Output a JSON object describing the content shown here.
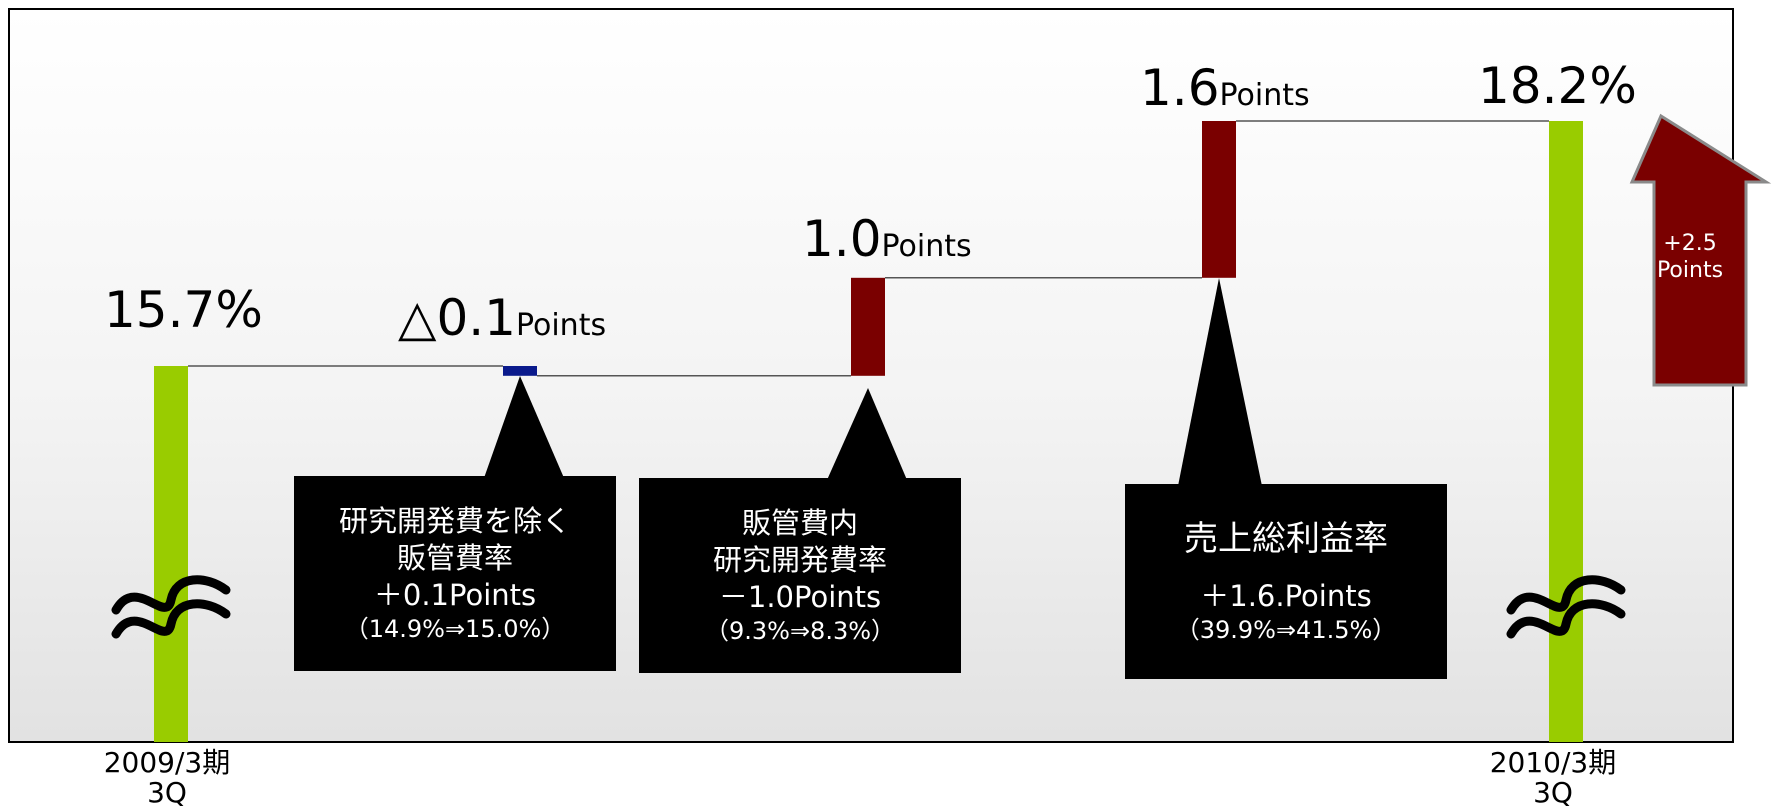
{
  "chart_data": {
    "type": "waterfall",
    "steps": [
      {
        "id": "start",
        "kind": "total",
        "value": 15.7,
        "label": "15.7%"
      },
      {
        "id": "sga_ex_rd",
        "kind": "delta",
        "value": -0.1,
        "label_main": "△0.1",
        "label_unit": "Points",
        "color": "#0a1a8c"
      },
      {
        "id": "rd",
        "kind": "delta",
        "value": 1.0,
        "label_main": "1.0",
        "label_unit": "Points",
        "color": "#7a0000"
      },
      {
        "id": "gross",
        "kind": "delta",
        "value": 1.6,
        "label_main": "1.6",
        "label_unit": "Points",
        "color": "#7a0000"
      },
      {
        "id": "end",
        "kind": "total",
        "value": 18.2,
        "label": "18.2%"
      }
    ],
    "total_color": "#99cc00",
    "axis_break": true
  },
  "periods": {
    "start": {
      "line1": "2009/3期",
      "line2": "3Q"
    },
    "end": {
      "line1": "2010/3期",
      "line2": "3Q"
    }
  },
  "callouts": {
    "sga": {
      "line1": "研究開発費を除く",
      "line2": "販管費率",
      "line3": "＋0.1Points",
      "line4": "（14.9%⇒15.0%）"
    },
    "rd": {
      "line1": "販管費内",
      "line2": "研究開発費率",
      "line3": "－1.0Points",
      "line4": "（9.3%⇒8.3%）"
    },
    "gross": {
      "line1": "売上総利益率",
      "line2": "＋1.6.Points",
      "line3": "（39.9%⇒41.5%）"
    }
  },
  "arrow": {
    "line1": "+2.5",
    "line2": "Points",
    "color": "#7a0000"
  },
  "break_symbol": "≈"
}
